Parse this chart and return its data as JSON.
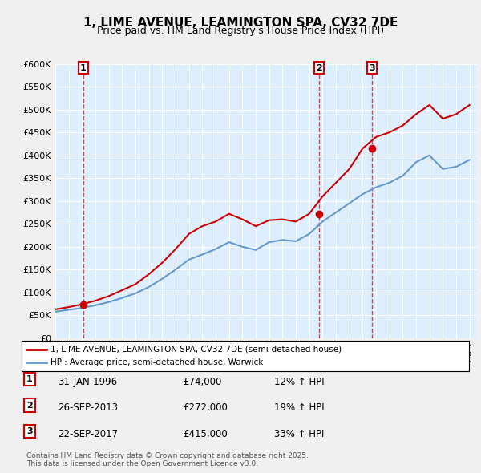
{
  "title": "1, LIME AVENUE, LEAMINGTON SPA, CV32 7DE",
  "subtitle": "Price paid vs. HM Land Registry's House Price Index (HPI)",
  "ylabel_ticks": [
    "£0",
    "£50K",
    "£100K",
    "£150K",
    "£200K",
    "£250K",
    "£300K",
    "£350K",
    "£400K",
    "£450K",
    "£500K",
    "£550K",
    "£600K"
  ],
  "ylim": [
    0,
    600000
  ],
  "xlim": [
    1994,
    2025.5
  ],
  "sale_dates": [
    1996.08,
    2013.73,
    2017.72
  ],
  "sale_prices": [
    74000,
    272000,
    415000
  ],
  "sale_labels": [
    "1",
    "2",
    "3"
  ],
  "sale_info": [
    {
      "label": "1",
      "date": "31-JAN-1996",
      "price": "£74,000",
      "hpi": "12% ↑ HPI"
    },
    {
      "label": "2",
      "date": "26-SEP-2013",
      "price": "£272,000",
      "hpi": "19% ↑ HPI"
    },
    {
      "label": "3",
      "date": "22-SEP-2017",
      "price": "£415,000",
      "hpi": "33% ↑ HPI"
    }
  ],
  "legend_line1": "1, LIME AVENUE, LEAMINGTON SPA, CV32 7DE (semi-detached house)",
  "legend_line2": "HPI: Average price, semi-detached house, Warwick",
  "footer": "Contains HM Land Registry data © Crown copyright and database right 2025.\nThis data is licensed under the Open Government Licence v3.0.",
  "line_color_red": "#cc0000",
  "line_color_blue": "#6699cc",
  "background_color": "#ddeeff",
  "plot_bg_color": "#ddeeff",
  "grid_color": "#ffffff",
  "vline_color": "#cc0000",
  "marker_box_color": "#cc0000",
  "hpi_years": [
    1994,
    1995,
    1996,
    1997,
    1998,
    1999,
    2000,
    2001,
    2002,
    2003,
    2004,
    2005,
    2006,
    2007,
    2008,
    2009,
    2010,
    2011,
    2012,
    2013,
    2014,
    2015,
    2016,
    2017,
    2018,
    2019,
    2020,
    2021,
    2022,
    2023,
    2024,
    2025
  ],
  "hpi_values": [
    58000,
    62000,
    66000,
    72000,
    79000,
    88000,
    98000,
    112000,
    130000,
    150000,
    172000,
    183000,
    195000,
    210000,
    200000,
    193000,
    210000,
    215000,
    212000,
    228000,
    255000,
    275000,
    295000,
    315000,
    330000,
    340000,
    355000,
    385000,
    400000,
    370000,
    375000,
    390000
  ],
  "price_years": [
    1994,
    1995,
    1996,
    1997,
    1998,
    1999,
    2000,
    2001,
    2002,
    2003,
    2004,
    2005,
    2006,
    2007,
    2008,
    2009,
    2010,
    2011,
    2012,
    2013,
    2014,
    2015,
    2016,
    2017,
    2018,
    2019,
    2020,
    2021,
    2022,
    2023,
    2024,
    2025
  ],
  "price_values": [
    63000,
    68000,
    74000,
    82000,
    92000,
    105000,
    118000,
    140000,
    165000,
    195000,
    228000,
    245000,
    255000,
    272000,
    260000,
    245000,
    258000,
    260000,
    255000,
    272000,
    310000,
    340000,
    370000,
    415000,
    440000,
    450000,
    465000,
    490000,
    510000,
    480000,
    490000,
    510000
  ]
}
